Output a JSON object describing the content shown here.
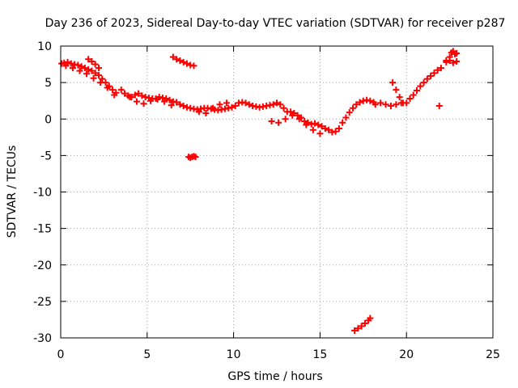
{
  "chart_data": {
    "type": "scatter",
    "title": "Day 236 of 2023, Sidereal Day-to-day VTEC variation (SDTVAR) for receiver p287",
    "xlabel": "GPS time / hours",
    "ylabel": "SDTVAR / TECUs",
    "xlim": [
      0,
      25
    ],
    "ylim": [
      -30,
      10
    ],
    "xticks": [
      0,
      5,
      10,
      15,
      20,
      25
    ],
    "yticks": [
      10,
      5,
      0,
      -5,
      -10,
      -15,
      -20,
      -25,
      -30
    ],
    "grid": true,
    "marker": "+",
    "colors": {
      "series": "#ff0000",
      "grid": "#a0a0a0",
      "axis": "#000000"
    },
    "series": [
      {
        "name": "SDTVAR",
        "x": [
          0.05,
          0.2,
          0.4,
          0.6,
          0.8,
          1.0,
          1.2,
          1.4,
          1.6,
          1.8,
          2.0,
          2.2,
          2.4,
          2.6,
          2.8,
          3.0,
          3.2,
          0.3,
          0.7,
          1.1,
          1.5,
          1.9,
          2.3,
          2.7,
          3.1,
          1.6,
          1.8,
          2.0,
          2.2,
          3.5,
          3.7,
          3.9,
          4.1,
          4.3,
          4.5,
          4.7,
          4.9,
          5.1,
          5.3,
          5.5,
          5.7,
          5.9,
          6.1,
          6.3,
          6.5,
          6.7,
          6.9,
          7.1,
          7.3,
          7.5,
          7.7,
          7.9,
          8.1,
          8.3,
          8.5,
          8.7,
          8.9,
          9.1,
          9.3,
          9.5,
          9.7,
          9.9,
          10.1,
          10.3,
          10.5,
          10.7,
          10.9,
          11.1,
          11.3,
          11.5,
          11.7,
          11.9,
          12.1,
          12.3,
          12.5,
          12.7,
          12.9,
          13.1,
          13.3,
          13.5,
          13.7,
          13.9,
          14.1,
          14.3,
          14.5,
          14.7,
          14.9,
          15.1,
          15.3,
          15.5,
          15.7,
          15.9,
          16.1,
          16.3,
          16.5,
          16.7,
          16.9,
          17.1,
          17.3,
          17.5,
          17.7,
          17.9,
          18.1,
          4.0,
          4.4,
          4.8,
          5.2,
          5.6,
          6.0,
          6.4,
          8.0,
          8.4,
          8.8,
          9.2,
          9.6,
          12.2,
          12.6,
          13.0,
          13.4,
          13.8,
          14.2,
          14.6,
          15.0,
          6.5,
          6.7,
          6.9,
          7.1,
          7.3,
          7.5,
          7.7,
          7.4,
          7.5,
          7.6,
          7.7,
          7.8,
          17.0,
          17.2,
          17.4,
          17.6,
          17.8,
          17.9,
          18.2,
          18.5,
          18.8,
          19.1,
          19.4,
          19.7,
          20.0,
          19.2,
          19.4,
          19.6,
          19.8,
          20.2,
          20.4,
          20.6,
          20.8,
          21.0,
          21.2,
          21.4,
          21.6,
          21.8,
          22.0,
          21.9,
          22.3,
          22.5,
          22.6,
          22.7,
          22.8,
          22.9,
          22.3,
          22.5,
          22.7,
          22.9
        ],
        "y": [
          7.6,
          7.7,
          7.8,
          7.6,
          7.5,
          7.4,
          7.2,
          7.0,
          6.8,
          6.6,
          6.3,
          6.0,
          5.5,
          5.0,
          4.5,
          4.0,
          3.6,
          7.3,
          7.0,
          6.6,
          6.2,
          5.6,
          5.0,
          4.3,
          3.3,
          8.2,
          7.9,
          7.5,
          7.0,
          4.0,
          3.5,
          3.2,
          3.0,
          3.3,
          3.5,
          3.2,
          3.0,
          2.9,
          2.8,
          2.8,
          3.0,
          2.9,
          2.8,
          2.6,
          2.4,
          2.3,
          2.0,
          1.8,
          1.6,
          1.5,
          1.4,
          1.3,
          1.4,
          1.5,
          1.5,
          1.4,
          1.3,
          1.2,
          1.3,
          1.4,
          1.5,
          1.6,
          1.8,
          2.2,
          2.3,
          2.2,
          2.0,
          1.8,
          1.7,
          1.6,
          1.7,
          1.8,
          1.9,
          2.0,
          2.2,
          2.0,
          1.5,
          1.0,
          1.0,
          0.8,
          0.5,
          0.2,
          -0.3,
          -0.5,
          -0.7,
          -0.6,
          -0.8,
          -1.0,
          -1.3,
          -1.5,
          -1.8,
          -1.7,
          -1.3,
          -0.5,
          0.2,
          0.9,
          1.5,
          2.0,
          2.3,
          2.5,
          2.6,
          2.5,
          2.3,
          3.0,
          2.4,
          2.1,
          2.5,
          2.7,
          2.4,
          1.9,
          1.0,
          0.8,
          1.5,
          2.0,
          2.2,
          -0.3,
          -0.5,
          0.0,
          0.5,
          0.0,
          -0.8,
          -1.5,
          -2.0,
          8.5,
          8.2,
          8.0,
          7.8,
          7.6,
          7.4,
          7.3,
          -5.2,
          -5.3,
          -5.2,
          -5.1,
          -5.2,
          -29.0,
          -28.7,
          -28.4,
          -28.0,
          -27.6,
          -27.3,
          2.0,
          2.2,
          2.0,
          1.8,
          2.0,
          2.2,
          2.2,
          5.0,
          4.0,
          3.0,
          2.2,
          2.8,
          3.3,
          3.9,
          4.5,
          5.0,
          5.5,
          5.9,
          6.3,
          6.7,
          7.0,
          1.8,
          8.0,
          8.5,
          9.1,
          9.3,
          8.9,
          9.0,
          7.8,
          8.0,
          7.7,
          7.9
        ]
      }
    ]
  }
}
